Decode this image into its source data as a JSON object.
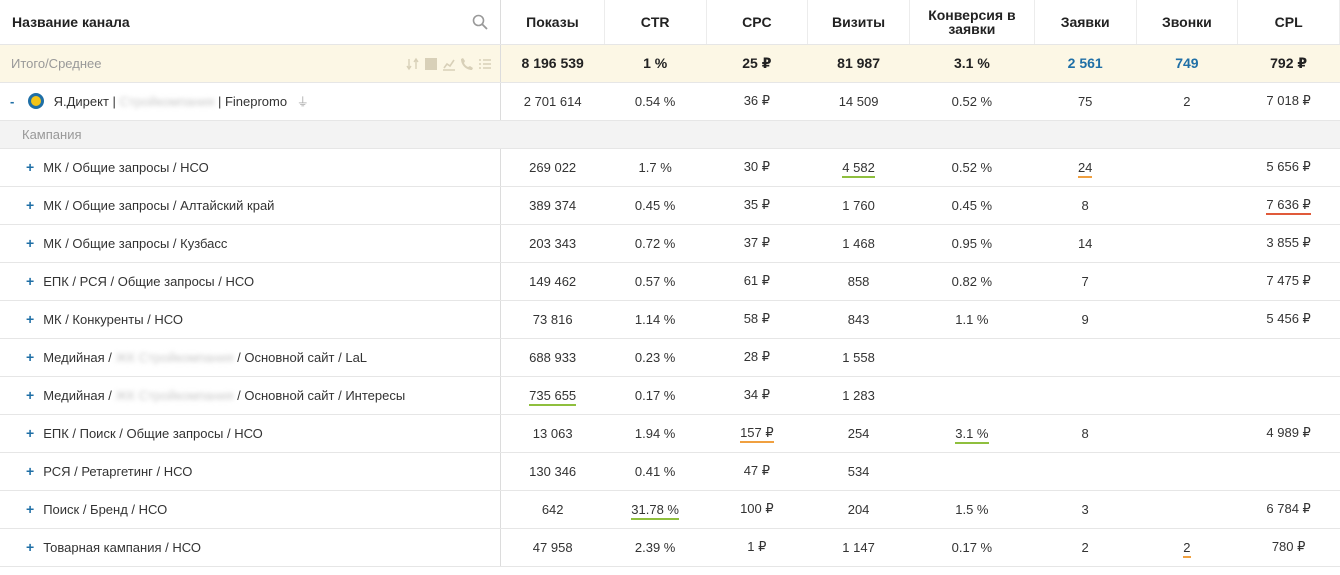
{
  "headers": {
    "name": "Название канала",
    "shows": "Показы",
    "ctr": "CTR",
    "cpc": "CPC",
    "visits": "Визиты",
    "conversion": "Конверсия в заявки",
    "requests": "Заявки",
    "calls": "Звонки",
    "cpl": "CPL"
  },
  "total": {
    "label": "Итого/Среднее",
    "shows": "8 196 539",
    "ctr": "1 %",
    "cpc": "25 ₽",
    "visits": "81 987",
    "conversion": "3.1 %",
    "requests": "2 561",
    "calls": "749",
    "cpl": "792 ₽"
  },
  "channel": {
    "toggle": "-",
    "name_prefix": "Я.Директ | ",
    "name_blur": "Стройкомпания",
    "name_suffix": " | Finepromo",
    "shows": "2 701 614",
    "ctr": "0.54 %",
    "cpc": "36 ₽",
    "visits": "14 509",
    "conversion": "0.52 %",
    "requests": "75",
    "calls": "2",
    "cpl": "7 018 ₽"
  },
  "section_label": "Кампания",
  "rows": [
    {
      "name": "МК / Общие запросы / НСО",
      "shows": "269 022",
      "ctr": "1.7 %",
      "cpc": "30 ₽",
      "visits": "4 582",
      "conversion": "0.52 %",
      "requests": "24",
      "calls": "",
      "cpl": "5 656 ₽"
    },
    {
      "name": "МК / Общие запросы / Алтайский край",
      "shows": "389 374",
      "ctr": "0.45 %",
      "cpc": "35 ₽",
      "visits": "1 760",
      "conversion": "0.45 %",
      "requests": "8",
      "calls": "",
      "cpl": "7 636 ₽"
    },
    {
      "name": "МК / Общие запросы / Кузбасс",
      "shows": "203 343",
      "ctr": "0.72 %",
      "cpc": "37 ₽",
      "visits": "1 468",
      "conversion": "0.95 %",
      "requests": "14",
      "calls": "",
      "cpl": "3 855 ₽"
    },
    {
      "name": "ЕПК / РСЯ / Общие запросы / НСО",
      "shows": "149 462",
      "ctr": "0.57 %",
      "cpc": "61 ₽",
      "visits": "858",
      "conversion": "0.82 %",
      "requests": "7",
      "calls": "",
      "cpl": "7 475 ₽"
    },
    {
      "name": "МК / Конкуренты / НСО",
      "shows": "73 816",
      "ctr": "1.14 %",
      "cpc": "58 ₽",
      "visits": "843",
      "conversion": "1.1 %",
      "requests": "9",
      "calls": "",
      "cpl": "5 456 ₽"
    },
    {
      "name_prefix": "Медийная / ",
      "name_blur": "ЖК Стройкомпания",
      "name_suffix": " / Основной сайт / LaL",
      "shows": "688 933",
      "ctr": "0.23 %",
      "cpc": "28 ₽",
      "visits": "1 558",
      "conversion": "",
      "requests": "",
      "calls": "",
      "cpl": ""
    },
    {
      "name_prefix": "Медийная / ",
      "name_blur": "ЖК Стройкомпания",
      "name_suffix": " / Основной сайт / Интересы",
      "shows": "735 655",
      "ctr": "0.17 %",
      "cpc": "34 ₽",
      "visits": "1 283",
      "conversion": "",
      "requests": "",
      "calls": "",
      "cpl": ""
    },
    {
      "name": "ЕПК / Поиск / Общие запросы / НСО",
      "shows": "13 063",
      "ctr": "1.94 %",
      "cpc": "157 ₽",
      "visits": "254",
      "conversion": "3.1 %",
      "requests": "8",
      "calls": "",
      "cpl": "4 989 ₽"
    },
    {
      "name": "РСЯ / Ретаргетинг / НСО",
      "shows": "130 346",
      "ctr": "0.41 %",
      "cpc": "47 ₽",
      "visits": "534",
      "conversion": "",
      "requests": "",
      "calls": "",
      "cpl": ""
    },
    {
      "name": "Поиск / Бренд / НСО",
      "shows": "642",
      "ctr": "31.78 %",
      "cpc": "100 ₽",
      "visits": "204",
      "conversion": "1.5 %",
      "requests": "3",
      "calls": "",
      "cpl": "6 784 ₽"
    },
    {
      "name": "Товарная кампания / НСО",
      "shows": "47 958",
      "ctr": "2.39 %",
      "cpc": "1 ₽",
      "visits": "1 147",
      "conversion": "0.17 %",
      "requests": "2",
      "calls": "2",
      "cpl": "780 ₽"
    }
  ],
  "icons": {
    "search": "search-icon",
    "sort": "sort-icon",
    "table": "table-icon",
    "chart": "chart-icon",
    "phone": "phone-icon",
    "list": "list-icon"
  },
  "colors": {
    "accent": "#1f6fa6",
    "total_bg": "#fcf7e5",
    "underline_green": "#8fbf3e",
    "underline_orange": "#f0a040",
    "underline_red": "#e05a3a"
  }
}
